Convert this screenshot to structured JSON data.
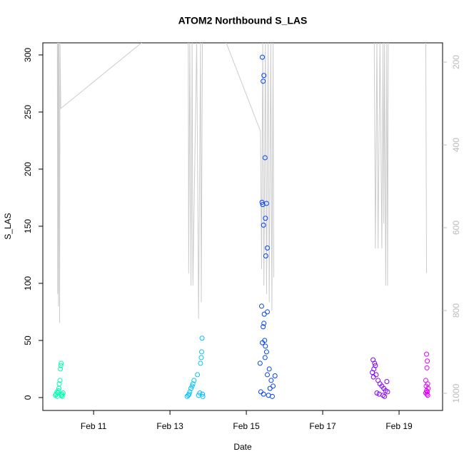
{
  "chart_data": {
    "type": "scatter",
    "title": "ATOM2 Northbound S_LAS",
    "x_label": "Date",
    "y_label": "S_LAS",
    "xlim": [
      9.67,
      20.14
    ],
    "xticks": [
      {
        "value": 11,
        "label": "Feb 11"
      },
      {
        "value": 13,
        "label": "Feb 13"
      },
      {
        "value": 15,
        "label": "Feb 15"
      },
      {
        "value": 17,
        "label": "Feb 17"
      },
      {
        "value": 19,
        "label": "Feb 19"
      }
    ],
    "ylim": [
      -11.3,
      310.6
    ],
    "yticks": [
      0,
      50,
      100,
      150,
      200,
      250,
      300
    ],
    "y2lim": [
      1041.4,
      153.4
    ],
    "y2ticks": [
      200,
      400,
      600,
      800,
      1000
    ],
    "series": [
      {
        "color": "#00ffb0",
        "x": [
          10.0,
          10.02,
          10.04,
          10.05,
          10.06,
          10.08,
          10.09,
          10.1,
          10.12,
          10.13,
          10.14,
          10.15,
          10.16,
          10.17,
          10.18,
          10.2
        ],
        "values": [
          2,
          3,
          5,
          1,
          4,
          6,
          8,
          12,
          15,
          25,
          28,
          30,
          2,
          3,
          1,
          4
        ]
      },
      {
        "color": "#00c0ff",
        "x": [
          13.45,
          13.48,
          13.5,
          13.52,
          13.55,
          13.58,
          13.6,
          13.63,
          13.72,
          13.75,
          13.78,
          13.8,
          13.82,
          13.83,
          13.84,
          13.85,
          13.86
        ],
        "values": [
          1,
          2,
          3,
          5,
          8,
          10,
          12,
          15,
          20,
          2,
          4,
          30,
          35,
          40,
          52,
          3,
          1
        ]
      },
      {
        "color": "#0040ff",
        "x": [
          15.42,
          15.46,
          15.44,
          15.49,
          15.41,
          15.43,
          15.53,
          15.5,
          15.45,
          15.55,
          15.51,
          15.4,
          15.55,
          15.47,
          15.46,
          15.44,
          15.48,
          15.42,
          15.5,
          15.53,
          15.49,
          15.36,
          15.6,
          15.55,
          15.65,
          15.7,
          15.38,
          15.45,
          15.58,
          15.68,
          15.62,
          15.75
        ],
        "values": [
          298,
          282,
          277,
          210,
          171,
          169,
          170,
          157,
          151,
          131,
          124,
          80,
          75,
          73,
          65,
          62,
          50,
          48,
          45,
          40,
          35,
          30,
          25,
          20,
          15,
          10,
          5,
          3,
          2,
          1,
          8,
          19
        ]
      },
      {
        "color": "#8000ff",
        "x": [
          18.32,
          18.36,
          18.38,
          18.34,
          18.3,
          18.4,
          18.33,
          18.45,
          18.5,
          18.55,
          18.6,
          18.65,
          18.7,
          18.42,
          18.48,
          18.58,
          18.62,
          18.68
        ],
        "values": [
          33,
          30,
          28,
          25,
          22,
          20,
          18,
          15,
          12,
          10,
          8,
          6,
          5,
          4,
          3,
          2,
          1,
          14
        ]
      },
      {
        "color": "#e000ff",
        "x": [
          19.72,
          19.74,
          19.73,
          19.7,
          19.75,
          19.71,
          19.76,
          19.72,
          19.74,
          19.7,
          19.73,
          19.75
        ],
        "values": [
          38,
          32,
          26,
          15,
          12,
          10,
          8,
          6,
          5,
          4,
          3,
          2
        ]
      },
      {
        "type": "line",
        "axis": "y2",
        "color": "#cccccc",
        "x": [
          10.05,
          10.06,
          10.07,
          10.08,
          10.09,
          10.11,
          10.12,
          10.14,
          12.3,
          13.48,
          13.49,
          13.52,
          13.55,
          13.58,
          13.6,
          13.7,
          13.75,
          13.8,
          13.82,
          13.85,
          14.46,
          15.37,
          15.4,
          15.43,
          15.46,
          15.5,
          15.53,
          15.57,
          15.6,
          15.64,
          15.67,
          15.7,
          15.72,
          null,
          18.35,
          18.38,
          18.42,
          18.45,
          18.5,
          18.55,
          18.58,
          18.6,
          18.62,
          18.65,
          18.68,
          18.7,
          18.72,
          null,
          19.7,
          19.72
        ],
        "values": [
          150,
          760,
          150,
          790,
          150,
          830,
          150,
          312,
          150,
          150,
          710,
          150,
          740,
          150,
          740,
          150,
          820,
          150,
          780,
          150,
          150,
          367,
          700,
          150,
          740,
          150,
          760,
          150,
          780,
          150,
          800,
          150,
          720,
          null,
          150,
          650,
          150,
          650,
          150,
          650,
          150,
          590,
          150,
          740,
          150,
          740,
          150,
          null,
          150,
          710
        ]
      }
    ]
  }
}
